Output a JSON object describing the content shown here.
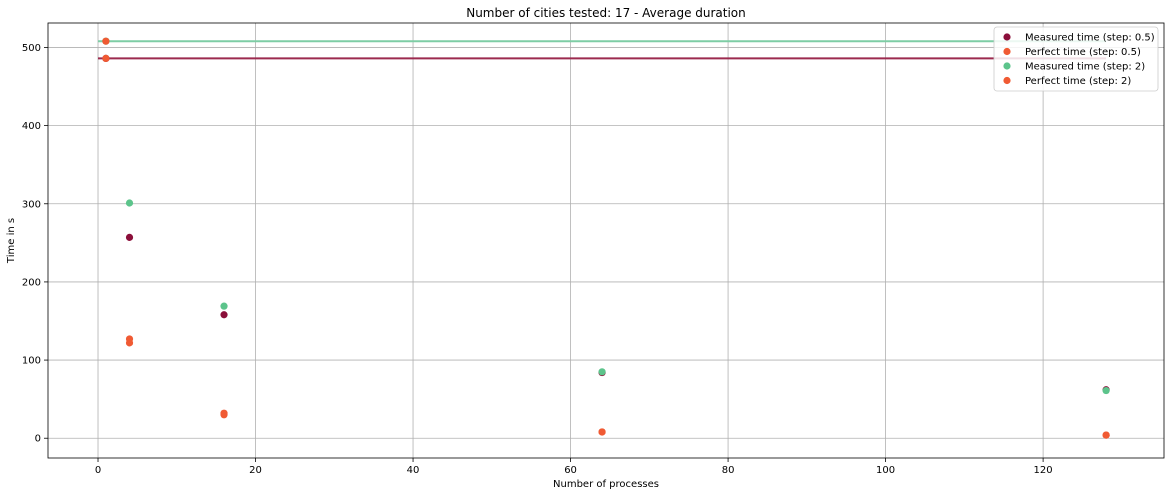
{
  "chart_data": {
    "type": "scatter",
    "title": "Number of cities tested: 17 - Average duration",
    "xlabel": "Number of processes",
    "ylabel": "Time in s",
    "xlim": [
      -6.35,
      135.35
    ],
    "ylim": [
      -25.3,
      531.3
    ],
    "xticks": [
      0,
      20,
      40,
      60,
      80,
      100,
      120
    ],
    "yticks": [
      0,
      100,
      200,
      300,
      400,
      500
    ],
    "grid": true,
    "legend_position": "top-right",
    "colors": {
      "measured_0_5": "#8b0f3a",
      "perfect_0_5": "#f05a33",
      "measured_2": "#5cc48b",
      "perfect_2": "#f05a33",
      "hline_0_5": "#9c2a4f",
      "hline_2": "#7ecda5",
      "grid": "#b0b0b0"
    },
    "hlines": [
      {
        "y": 508,
        "x": [
          0,
          128
        ],
        "color_key": "hline_2"
      },
      {
        "y": 486,
        "x": [
          0,
          128
        ],
        "color_key": "hline_0_5"
      }
    ],
    "series": [
      {
        "name": "Measured time (step: 0.5)",
        "color_key": "measured_0_5",
        "x": [
          1,
          4,
          16,
          64,
          128
        ],
        "y": [
          486,
          257,
          158,
          84,
          62
        ]
      },
      {
        "name": "Perfect time (step: 0.5)",
        "color_key": "perfect_0_5",
        "x": [
          1,
          4,
          16,
          64,
          128
        ],
        "y": [
          486,
          122,
          30,
          8,
          4
        ]
      },
      {
        "name": "Measured time (step: 2)",
        "color_key": "measured_2",
        "x": [
          1,
          4,
          16,
          64,
          128
        ],
        "y": [
          508,
          301,
          169,
          85,
          61
        ]
      },
      {
        "name": "Perfect time (step: 2)",
        "color_key": "perfect_2",
        "x": [
          1,
          4,
          16,
          64,
          128
        ],
        "y": [
          508,
          127,
          32,
          8,
          4
        ]
      }
    ]
  }
}
